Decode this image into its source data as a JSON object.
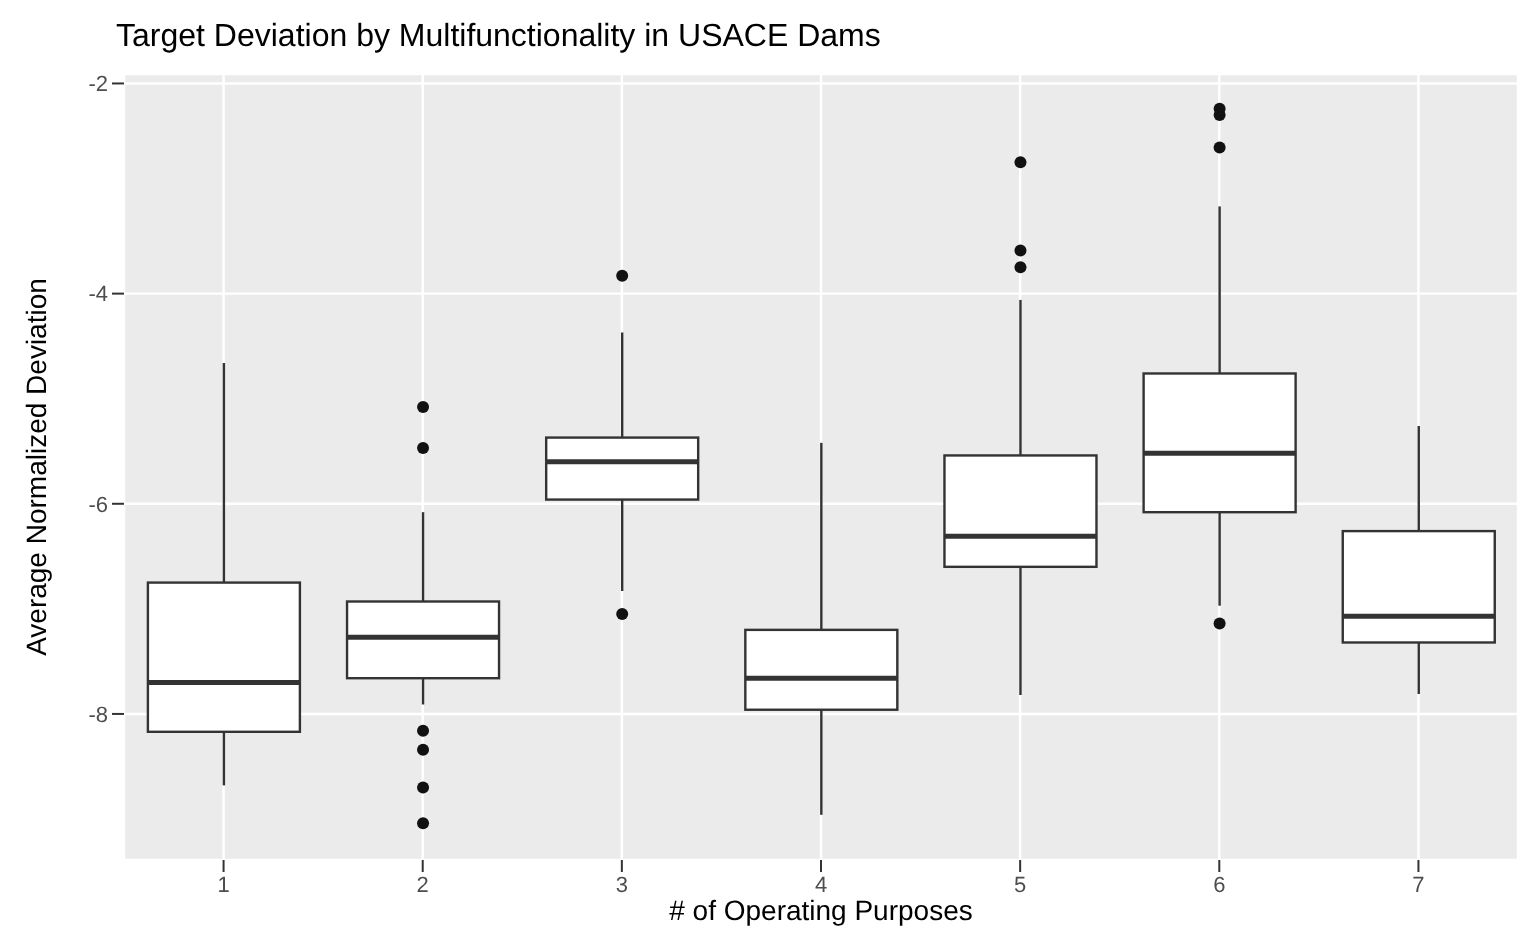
{
  "chart_data": {
    "type": "box",
    "title": "Target Deviation by Multifunctionality in USACE Dams",
    "xlabel": "# of Operating Purposes",
    "ylabel": "Average Normalized Deviation",
    "categories": [
      "1",
      "2",
      "3",
      "4",
      "5",
      "6",
      "7"
    ],
    "color": "#ffffff",
    "boxes": [
      {
        "low": -8.68,
        "q1": -8.17,
        "median": -7.7,
        "q3": -6.75,
        "high": -4.66
      },
      {
        "low": -7.91,
        "q1": -7.66,
        "median": -7.27,
        "q3": -6.93,
        "high": -6.08,
        "outliers": [
          -5.08,
          -5.47,
          -8.16,
          -8.34,
          -8.7,
          -9.04
        ]
      },
      {
        "low": -6.83,
        "q1": -5.96,
        "median": -5.6,
        "q3": -5.37,
        "high": -4.37,
        "outliers": [
          -3.83,
          -7.05
        ]
      },
      {
        "low": -8.96,
        "q1": -7.96,
        "median": -7.66,
        "q3": -7.2,
        "high": -5.42
      },
      {
        "low": -7.82,
        "q1": -6.6,
        "median": -6.31,
        "q3": -5.54,
        "high": -4.06,
        "outliers": [
          -3.59,
          -3.75,
          -2.75
        ]
      },
      {
        "low": -6.97,
        "q1": -6.08,
        "median": -5.52,
        "q3": -4.76,
        "high": -3.17,
        "outliers": [
          -2.24,
          -2.3,
          -2.61,
          -7.14
        ]
      },
      {
        "low": -7.81,
        "q1": -7.32,
        "median": -7.07,
        "q3": -6.26,
        "high": -5.26
      }
    ],
    "ylim": [
      -9.39,
      -1.91
    ],
    "yticks": [
      -8,
      -6,
      -4,
      -2
    ],
    "grid": true
  }
}
